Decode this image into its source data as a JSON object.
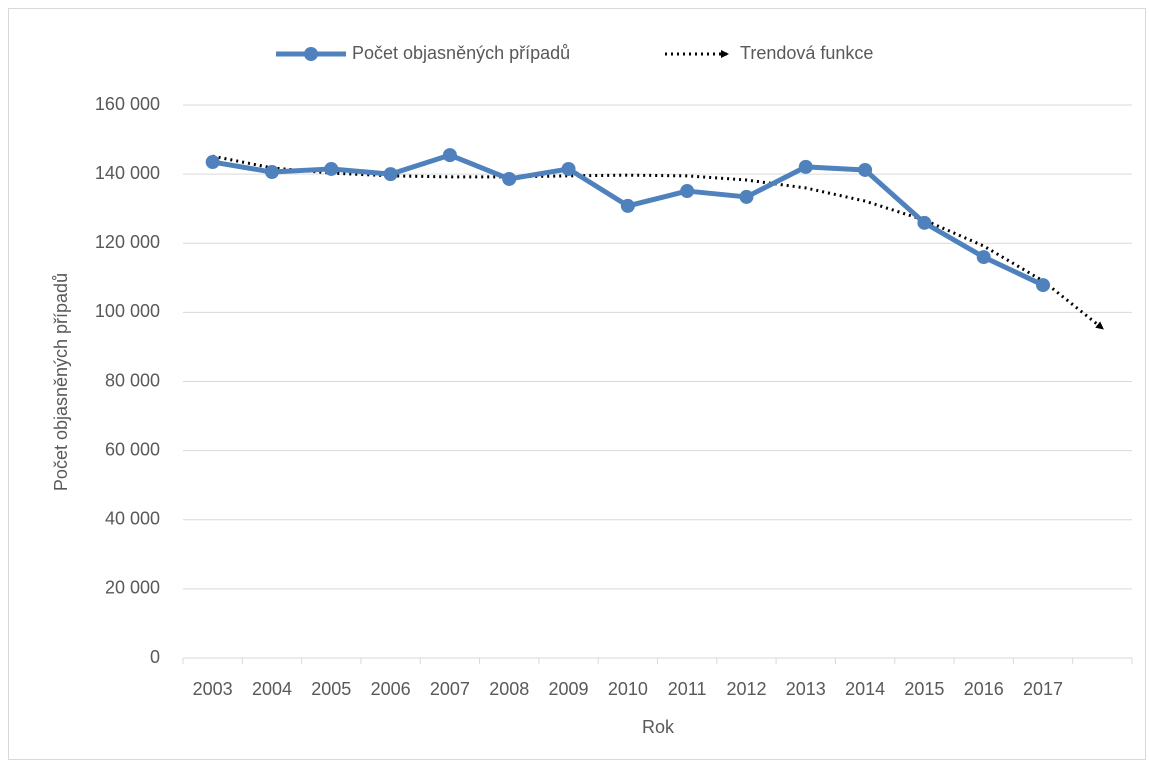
{
  "chart_data": {
    "type": "line",
    "y_label": "Počet objasněných případů",
    "x_label": "Rok",
    "categories": [
      "2003",
      "2004",
      "2005",
      "2006",
      "2007",
      "2008",
      "2009",
      "2010",
      "2011",
      "2012",
      "2013",
      "2014",
      "2015",
      "2016",
      "2017",
      null
    ],
    "series": [
      {
        "name": "Počet objasněných případů",
        "color": "#4f81bd",
        "style": "solid-markers",
        "values": [
          143500,
          140600,
          141500,
          140000,
          145500,
          138600,
          141500,
          130800,
          135100,
          133400,
          142100,
          141200,
          125900,
          116000,
          107900,
          null
        ]
      },
      {
        "name": "Trendová funkce",
        "color": "#000000",
        "style": "dotted-arrow",
        "values": [
          145200,
          141800,
          140300,
          139500,
          139200,
          139200,
          139500,
          139700,
          139500,
          138300,
          136000,
          132200,
          126700,
          119200,
          109100,
          95400
        ]
      }
    ],
    "ylim": [
      0,
      160000
    ],
    "yticks": [
      0,
      {
        "value": 20000,
        "label": "20 000"
      },
      {
        "value": 40000,
        "label": "40 000"
      },
      {
        "value": 60000,
        "label": "60 000"
      },
      {
        "value": 80000,
        "label": "80 000"
      },
      {
        "value": 100000,
        "label": "100 000"
      },
      {
        "value": 120000,
        "label": "120 000"
      },
      {
        "value": 140000,
        "label": "140 000"
      },
      {
        "value": 160000,
        "label": "160 000"
      }
    ],
    "grid": true,
    "legend": "top"
  }
}
